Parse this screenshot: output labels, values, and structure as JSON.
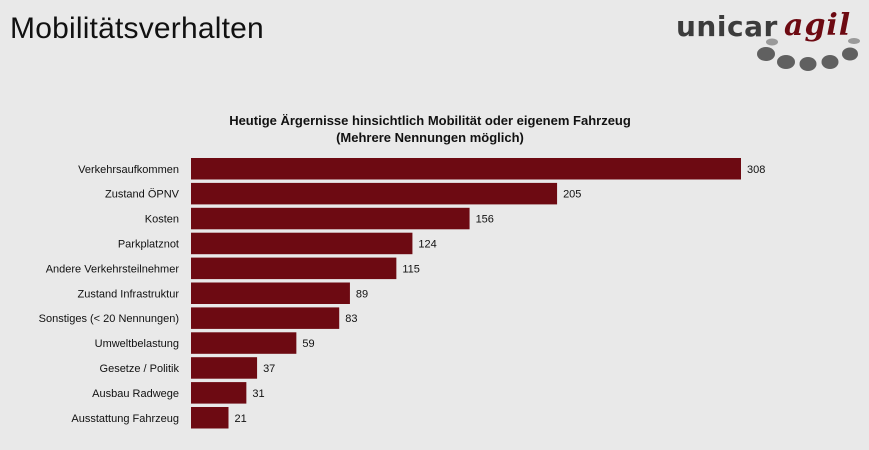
{
  "page": {
    "title": "Mobilitätsverhalten"
  },
  "logo": {
    "part1": "unicar",
    "part2": "agil"
  },
  "colors": {
    "bar": "#6d0a12",
    "background": "#e9e9e9",
    "logo_gray": "#3c3c3c",
    "logo_dots": "#606060"
  },
  "chart_data": {
    "type": "bar",
    "orientation": "horizontal",
    "title": "Heutige Ärgernisse hinsichtlich Mobilität oder eigenem Fahrzeug",
    "subtitle": "(Mehrere Nennungen möglich)",
    "categories": [
      "Verkehrsaufkommen",
      "Zustand ÖPNV",
      "Kosten",
      "Parkplatznot",
      "Andere Verkehrsteilnehmer",
      "Zustand Infrastruktur",
      "Sonstiges (< 20 Nennungen)",
      "Umweltbelastung",
      "Gesetze / Politik",
      "Ausbau Radwege",
      "Ausstattung Fahrzeug"
    ],
    "values": [
      308,
      205,
      156,
      124,
      115,
      89,
      83,
      59,
      37,
      31,
      21
    ],
    "xlim": [
      0,
      308
    ],
    "grid": false,
    "legend": "none"
  }
}
